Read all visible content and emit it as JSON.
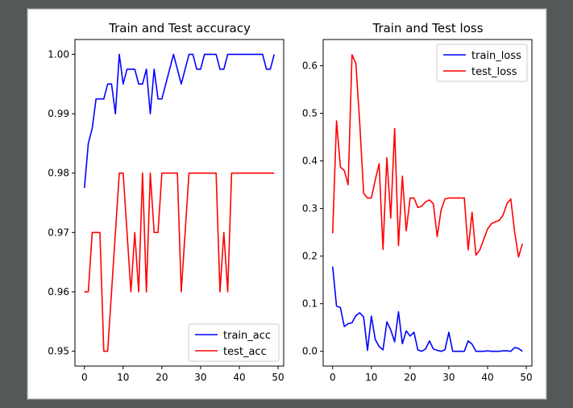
{
  "colors": {
    "train": "#0000ff",
    "test": "#ff0000",
    "background": "#535859"
  },
  "chart_data": [
    {
      "type": "line",
      "title": "Train and Test accuracy",
      "xlabel": "",
      "ylabel": "",
      "xlim": [
        -2.45,
        51.45
      ],
      "ylim": [
        0.9475,
        1.0025
      ],
      "xticks": [
        0,
        10,
        20,
        30,
        40,
        50
      ],
      "xtick_labels": [
        "0",
        "10",
        "20",
        "30",
        "40",
        "50"
      ],
      "yticks": [
        0.95,
        0.96,
        0.97,
        0.98,
        0.99,
        1.0
      ],
      "ytick_labels": [
        "0.95",
        "0.96",
        "0.97",
        "0.98",
        "0.99",
        "1.00"
      ],
      "grid": false,
      "legend_position": "lower-right",
      "series": [
        {
          "name": "train_acc",
          "color": "#0000ff",
          "x": [
            0,
            1,
            2,
            3,
            4,
            5,
            6,
            7,
            8,
            9,
            10,
            11,
            12,
            13,
            14,
            15,
            16,
            17,
            18,
            19,
            20,
            21,
            22,
            23,
            24,
            25,
            26,
            27,
            28,
            29,
            30,
            31,
            32,
            33,
            34,
            35,
            36,
            37,
            38,
            39,
            40,
            41,
            42,
            43,
            44,
            45,
            46,
            47,
            48,
            49
          ],
          "values": [
            0.9775,
            0.985,
            0.9875,
            0.9925,
            0.9925,
            0.9925,
            0.995,
            0.995,
            0.99,
            1.0,
            0.995,
            0.9975,
            0.9975,
            0.9975,
            0.995,
            0.995,
            0.9975,
            0.99,
            0.9975,
            0.9925,
            0.9925,
            0.995,
            0.9975,
            1.0,
            0.9975,
            0.995,
            0.9975,
            1.0,
            1.0,
            0.9975,
            0.9975,
            1.0,
            1.0,
            1.0,
            1.0,
            0.9975,
            0.9975,
            1.0,
            1.0,
            1.0,
            1.0,
            1.0,
            1.0,
            1.0,
            1.0,
            1.0,
            1.0,
            0.9975,
            0.9975,
            1.0
          ]
        },
        {
          "name": "test_acc",
          "color": "#ff0000",
          "x": [
            0,
            1,
            2,
            3,
            4,
            5,
            6,
            7,
            8,
            9,
            10,
            11,
            12,
            13,
            14,
            15,
            16,
            17,
            18,
            19,
            20,
            21,
            22,
            23,
            24,
            25,
            26,
            27,
            28,
            29,
            30,
            31,
            32,
            33,
            34,
            35,
            36,
            37,
            38,
            39,
            40,
            41,
            42,
            43,
            44,
            45,
            46,
            47,
            48,
            49
          ],
          "values": [
            0.96,
            0.96,
            0.97,
            0.97,
            0.97,
            0.95,
            0.95,
            0.96,
            0.97,
            0.98,
            0.98,
            0.97,
            0.96,
            0.97,
            0.96,
            0.98,
            0.96,
            0.98,
            0.97,
            0.97,
            0.98,
            0.98,
            0.98,
            0.98,
            0.98,
            0.96,
            0.97,
            0.98,
            0.98,
            0.98,
            0.98,
            0.98,
            0.98,
            0.98,
            0.98,
            0.96,
            0.97,
            0.96,
            0.98,
            0.98,
            0.98,
            0.98,
            0.98,
            0.98,
            0.98,
            0.98,
            0.98,
            0.98,
            0.98,
            0.98
          ]
        }
      ]
    },
    {
      "type": "line",
      "title": "Train and Test loss",
      "xlabel": "",
      "ylabel": "",
      "xlim": [
        -2.45,
        51.45
      ],
      "ylim": [
        -0.031,
        0.655
      ],
      "xticks": [
        0,
        10,
        20,
        30,
        40,
        50
      ],
      "xtick_labels": [
        "0",
        "10",
        "20",
        "30",
        "40",
        "50"
      ],
      "yticks": [
        0.0,
        0.1,
        0.2,
        0.3,
        0.4,
        0.5,
        0.6
      ],
      "ytick_labels": [
        "0.0",
        "0.1",
        "0.2",
        "0.3",
        "0.4",
        "0.5",
        "0.6"
      ],
      "grid": false,
      "legend_position": "upper-right",
      "series": [
        {
          "name": "train_loss",
          "color": "#0000ff",
          "x": [
            0,
            1,
            2,
            3,
            4,
            5,
            6,
            7,
            8,
            9,
            10,
            11,
            12,
            13,
            14,
            15,
            16,
            17,
            18,
            19,
            20,
            21,
            22,
            23,
            24,
            25,
            26,
            27,
            28,
            29,
            30,
            31,
            32,
            33,
            34,
            35,
            36,
            37,
            38,
            39,
            40,
            41,
            42,
            43,
            44,
            45,
            46,
            47,
            48,
            49
          ],
          "values": [
            0.178,
            0.095,
            0.092,
            0.052,
            0.058,
            0.06,
            0.075,
            0.081,
            0.072,
            0.002,
            0.074,
            0.025,
            0.01,
            0.003,
            0.062,
            0.045,
            0.02,
            0.083,
            0.016,
            0.043,
            0.032,
            0.04,
            0.003,
            0.0,
            0.005,
            0.022,
            0.005,
            0.002,
            0.0,
            0.003,
            0.04,
            0.0,
            0.0,
            0.0,
            0.0,
            0.022,
            0.015,
            0.0,
            0.0,
            0.0,
            0.001,
            0.0,
            0.0,
            0.0,
            0.001,
            0.001,
            0.0,
            0.008,
            0.006,
            0.0
          ]
        },
        {
          "name": "test_loss",
          "color": "#ff0000",
          "x": [
            0,
            1,
            2,
            3,
            4,
            5,
            6,
            7,
            8,
            9,
            10,
            11,
            12,
            13,
            14,
            15,
            16,
            17,
            18,
            19,
            20,
            21,
            22,
            23,
            24,
            25,
            26,
            27,
            28,
            29,
            30,
            31,
            32,
            33,
            34,
            35,
            36,
            37,
            38,
            39,
            40,
            41,
            42,
            43,
            44,
            45,
            46,
            47,
            48,
            49
          ],
          "values": [
            0.248,
            0.484,
            0.387,
            0.38,
            0.35,
            0.623,
            0.605,
            0.478,
            0.332,
            0.322,
            0.322,
            0.36,
            0.394,
            0.214,
            0.407,
            0.28,
            0.468,
            0.222,
            0.368,
            0.253,
            0.322,
            0.322,
            0.302,
            0.305,
            0.314,
            0.318,
            0.31,
            0.241,
            0.297,
            0.32,
            0.322,
            0.322,
            0.322,
            0.322,
            0.322,
            0.213,
            0.292,
            0.202,
            0.213,
            0.235,
            0.257,
            0.268,
            0.272,
            0.275,
            0.286,
            0.31,
            0.32,
            0.25,
            0.198,
            0.226
          ]
        }
      ]
    }
  ]
}
